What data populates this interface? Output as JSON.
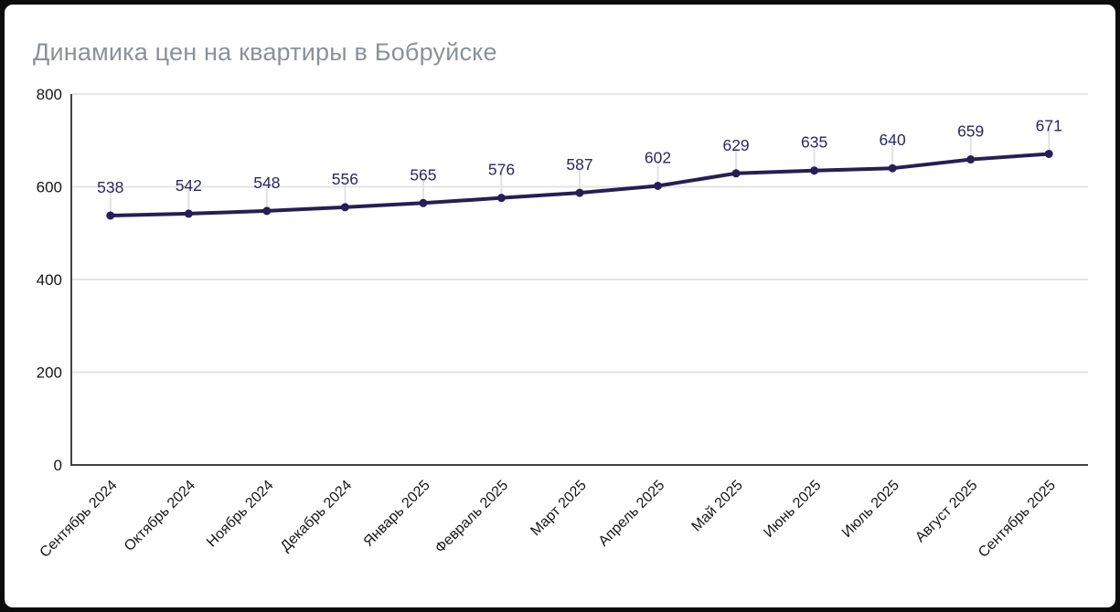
{
  "chart_data": {
    "type": "line",
    "title": "Динамика цен на квартиры в Бобруйске",
    "categories": [
      "Сентябрь 2024",
      "Октябрь 2024",
      "Ноябрь 2024",
      "Декабрь 2024",
      "Январь 2025",
      "Февраль 2025",
      "Март 2025",
      "Апрель 2025",
      "Май 2025",
      "Июнь 2025",
      "Июль 2025",
      "Август 2025",
      "Сентябрь 2025"
    ],
    "values": [
      538,
      542,
      548,
      556,
      565,
      576,
      587,
      602,
      629,
      635,
      640,
      659,
      671
    ],
    "xlabel": "",
    "ylabel": "",
    "ylim": [
      0,
      800
    ],
    "yticks": [
      0,
      200,
      400,
      600,
      800
    ],
    "grid": true,
    "legend": false,
    "data_labels": true,
    "x_label_rotation_deg": -45,
    "colors": {
      "line": "#271e55",
      "point": "#271e55",
      "data_label": "#2b2663",
      "grid_line": "#e4e4e4",
      "axis_line": "#424242",
      "tick_label": "#161616",
      "title": "#8b9199",
      "label_connector": "#e2e2e2",
      "background": "#ffffff",
      "frame_border": "#0c0c0c"
    }
  }
}
